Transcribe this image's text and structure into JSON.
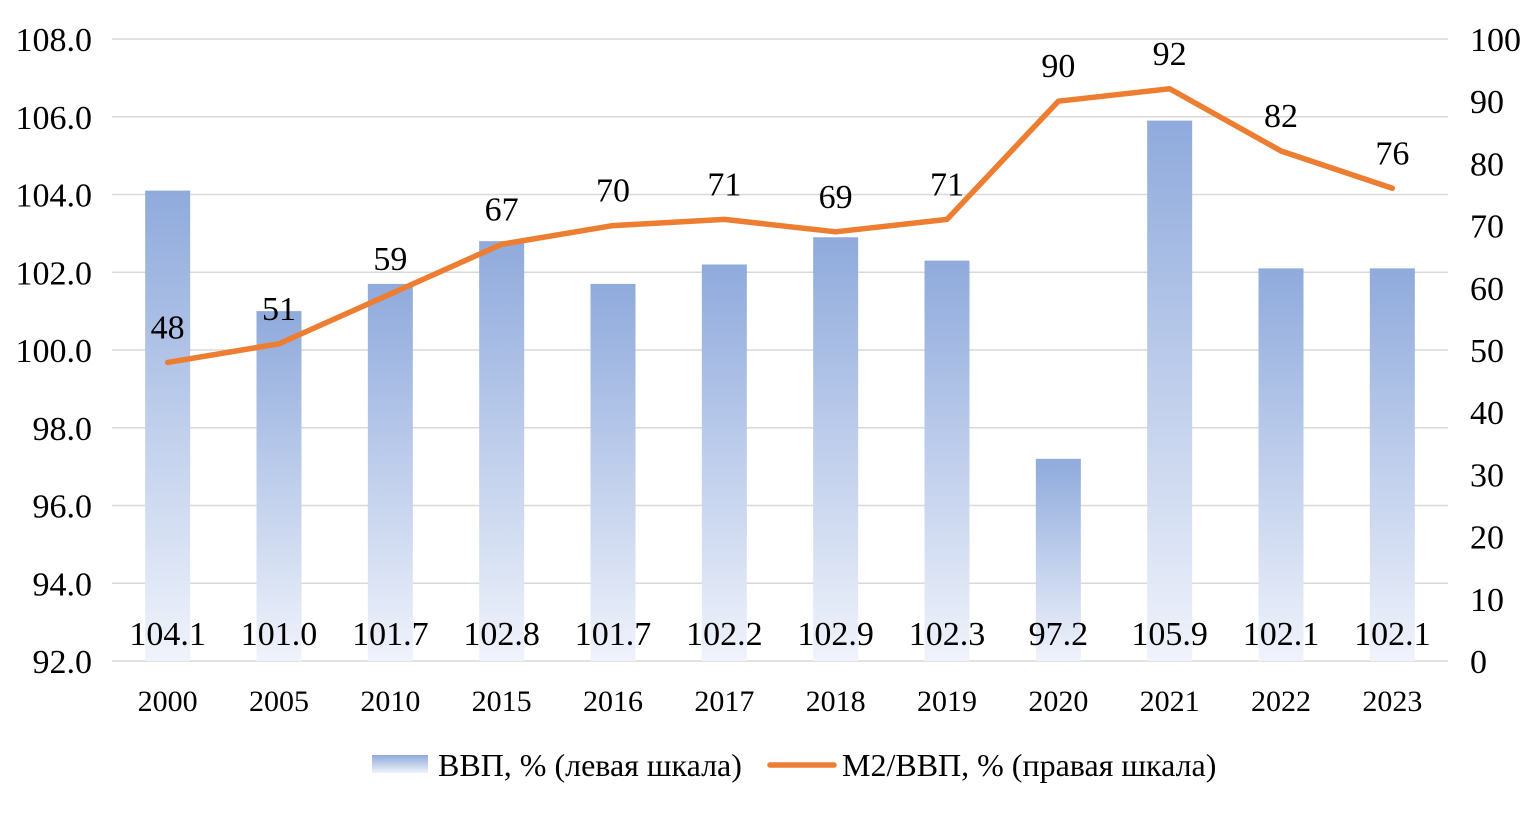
{
  "chart_data": {
    "type": "bar+line",
    "categories": [
      "2000",
      "2005",
      "2010",
      "2015",
      "2016",
      "2017",
      "2018",
      "2019",
      "2020",
      "2021",
      "2022",
      "2023"
    ],
    "series": [
      {
        "name": "ВВП, % (левая шкала)",
        "type": "bar",
        "axis": "left",
        "values": [
          104.1,
          101.0,
          101.7,
          102.8,
          101.7,
          102.2,
          102.9,
          102.3,
          97.2,
          105.9,
          102.1,
          102.1
        ],
        "labels": [
          "104.1",
          "101.0",
          "101.7",
          "102.8",
          "101.7",
          "102.2",
          "102.9",
          "102.3",
          "97.2",
          "105.9",
          "102.1",
          "102.1"
        ]
      },
      {
        "name": "M2/ВВП, % (правая шкала)",
        "type": "line",
        "axis": "right",
        "values": [
          48,
          51,
          59,
          67,
          70,
          71,
          69,
          71,
          90,
          92,
          82,
          76
        ],
        "labels": [
          "48",
          "51",
          "59",
          "67",
          "70",
          "71",
          "69",
          "71",
          "90",
          "92",
          "82",
          "76"
        ]
      }
    ],
    "left_axis": {
      "ylim": [
        92.0,
        108.0
      ],
      "ticks": [
        "108.0",
        "106.0",
        "104.0",
        "102.0",
        "100.0",
        "98.0",
        "96.0",
        "94.0",
        "92.0"
      ]
    },
    "right_axis": {
      "ylim": [
        0,
        100
      ],
      "ticks": [
        "100",
        "90",
        "80",
        "70",
        "60",
        "50",
        "40",
        "30",
        "20",
        "10",
        "0"
      ]
    },
    "grid": true,
    "legend": "bottom",
    "colors": {
      "bar": "#8faadc",
      "line": "#ed7d31",
      "grid": "#d9d9d9"
    }
  }
}
